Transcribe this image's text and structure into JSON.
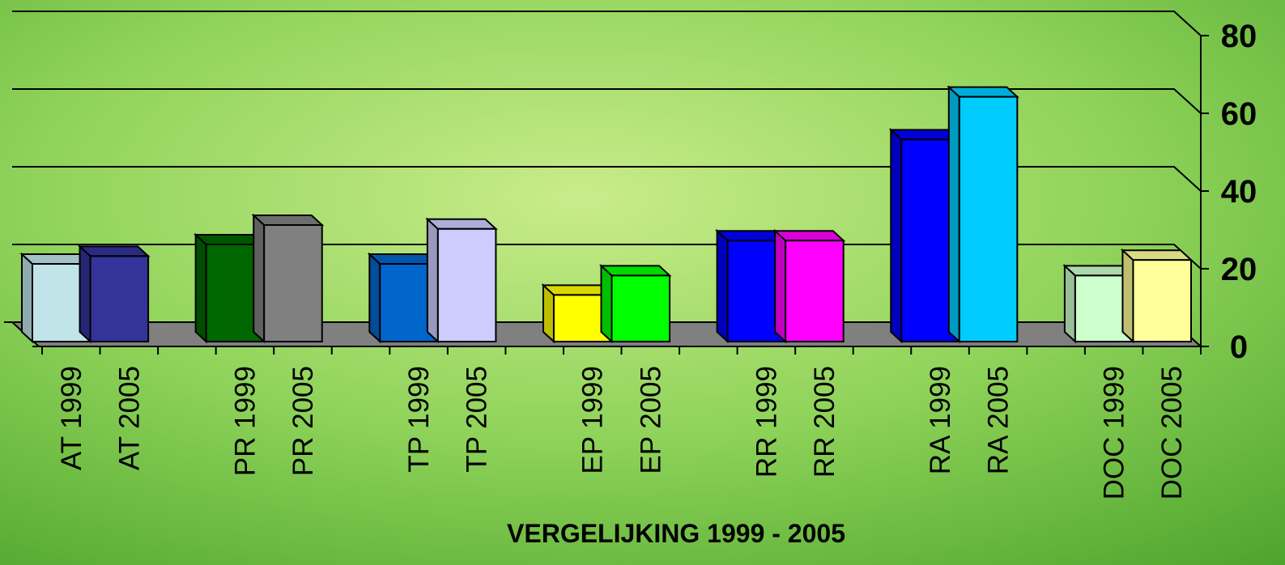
{
  "chart_data": {
    "type": "bar3d",
    "title": "VERGELIJKING 1999 - 2005",
    "categories": [
      "AT 1999",
      "AT 2005",
      null,
      "PR 1999",
      "PR 2005",
      null,
      "TP 1999",
      "TP 2005",
      null,
      "EP 1999",
      "EP 2005",
      null,
      "RR 1999",
      "RR 2005",
      null,
      "RA 1999",
      "RA 2005",
      null,
      "DOC 1999",
      "DOC 2005"
    ],
    "values": [
      20,
      22,
      null,
      25,
      30,
      null,
      20,
      29,
      null,
      12,
      17,
      null,
      26,
      26,
      null,
      52,
      63,
      null,
      17,
      21
    ],
    "colors": [
      "#c0e4e8",
      "#333399",
      null,
      "#006600",
      "#808080",
      null,
      "#0066cc",
      "#ccccff",
      null,
      "#ffff00",
      "#00ff00",
      null,
      "#0000ff",
      "#ff00ff",
      null,
      "#0000ff",
      "#00ccff",
      null,
      "#ccffcc",
      "#ffff99"
    ],
    "ylim": [
      0,
      80
    ],
    "yticks": [
      0,
      20,
      40,
      60,
      80
    ],
    "y_axis_side": "right",
    "grid": true
  }
}
